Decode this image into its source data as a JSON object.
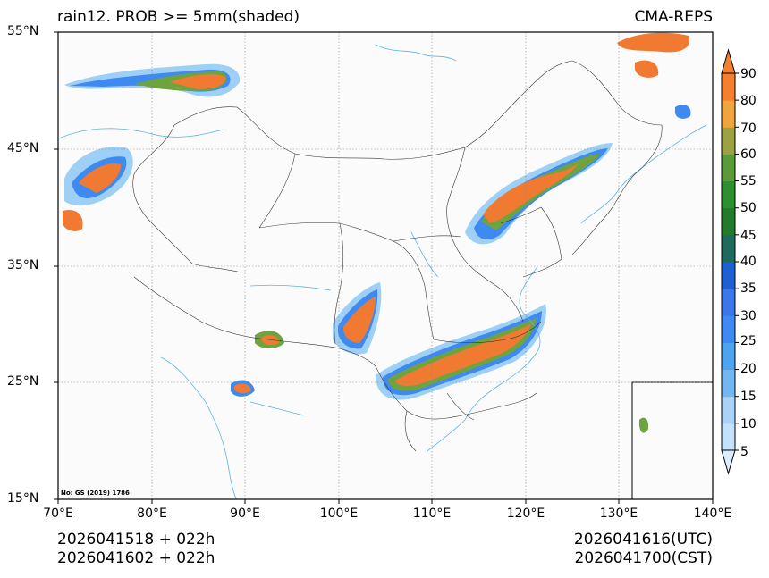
{
  "title": {
    "left": "rain12. PROB >= 5mm(shaded)",
    "right": "CMA-REPS"
  },
  "footer": {
    "init_utc": "2026041518  +  022h",
    "init_cst": "2026041602  +  022h",
    "valid_utc": "2026041616(UTC)",
    "valid_cst": "2026041700(CST)"
  },
  "axes": {
    "lat_labels": [
      "55°N",
      "45°N",
      "35°N",
      "25°N",
      "15°N"
    ],
    "lon_labels": [
      "70°E",
      "80°E",
      "90°E",
      "100°E",
      "110°E",
      "120°E",
      "130°E",
      "140°E"
    ]
  },
  "colorbar": {
    "levels": [
      "5",
      "10",
      "15",
      "20",
      "25",
      "30",
      "35",
      "40",
      "45",
      "50",
      "55",
      "60",
      "70",
      "80",
      "90"
    ],
    "colors": [
      "#dbeeff",
      "#c4e1fb",
      "#a9d2f6",
      "#74b6f0",
      "#4ea3ee",
      "#3e8af0",
      "#3b77e8",
      "#1e5fd1",
      "#1f6a5c",
      "#237a2c",
      "#2d8f2f",
      "#5b9a3a",
      "#9aa243",
      "#f0a53c",
      "#f47f30",
      "#f47f30"
    ]
  },
  "map_note": "No: GS (2019) 1786",
  "colors": {
    "land": "#fbfbfb",
    "orange": "#f07a32",
    "green": "#6fa33f",
    "blue": "#3d8ff0",
    "border": "#333333",
    "river": "#5ab4e0"
  }
}
